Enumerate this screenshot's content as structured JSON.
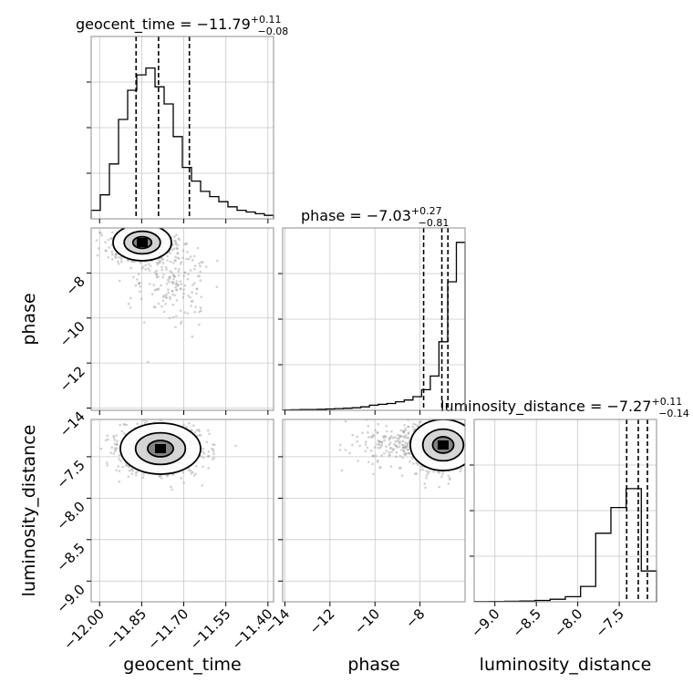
{
  "chart_data": {
    "type": "corner",
    "parameters": [
      {
        "name": "geocent_time",
        "title_prefix": "geocent_time = ",
        "median": "−11.79",
        "plus": "+0.11",
        "minus": "−0.08",
        "range": [
          -12.03,
          -11.38
        ],
        "quantiles": [
          -11.87,
          -11.79,
          -11.68
        ]
      },
      {
        "name": "phase",
        "title_prefix": "phase = ",
        "median": "−7.03",
        "plus": "+0.27",
        "minus": "−0.81",
        "range": [
          -14.1,
          -6.0
        ],
        "quantiles": [
          -7.84,
          -7.03,
          -6.76
        ]
      },
      {
        "name": "luminosity_distance",
        "title_prefix": "luminosity_distance = ",
        "median": "−7.27",
        "plus": "+0.11",
        "minus": "−0.14",
        "range": [
          -9.25,
          -7.05
        ],
        "quantiles": [
          -7.41,
          -7.27,
          -7.16
        ]
      }
    ],
    "ticks": {
      "geocent_time": {
        "values": [
          -12.0,
          -11.85,
          -11.7,
          -11.55,
          -11.4
        ],
        "labels": [
          "−12.00",
          "−11.85",
          "−11.70",
          "−11.55",
          "−11.40"
        ]
      },
      "phase": {
        "values": [
          -14,
          -12,
          -10,
          -8
        ],
        "labels": [
          "−14",
          "−12",
          "−10",
          "−8"
        ]
      },
      "luminosity_distance": {
        "values": [
          -9.0,
          -8.5,
          -8.0,
          -7.5
        ],
        "labels": [
          "−9.0",
          "−8.5",
          "−8.0",
          "−7.5"
        ]
      }
    },
    "histograms": {
      "geocent_time": [
        0.05,
        0.14,
        0.32,
        0.58,
        0.75,
        0.84,
        0.88,
        0.77,
        0.67,
        0.48,
        0.3,
        0.22,
        0.16,
        0.13,
        0.1,
        0.07,
        0.05,
        0.04,
        0.03,
        0.02
      ],
      "phase": [
        0.002,
        0.003,
        0.004,
        0.005,
        0.006,
        0.008,
        0.01,
        0.012,
        0.015,
        0.02,
        0.03,
        0.035,
        0.04,
        0.05,
        0.06,
        0.08,
        0.12,
        0.2,
        0.4,
        0.75,
        0.98
      ],
      "luminosity_distance": [
        0.001,
        0.002,
        0.003,
        0.005,
        0.008,
        0.015,
        0.03,
        0.09,
        0.4,
        0.55,
        0.66,
        0.18
      ]
    },
    "grid": true
  }
}
